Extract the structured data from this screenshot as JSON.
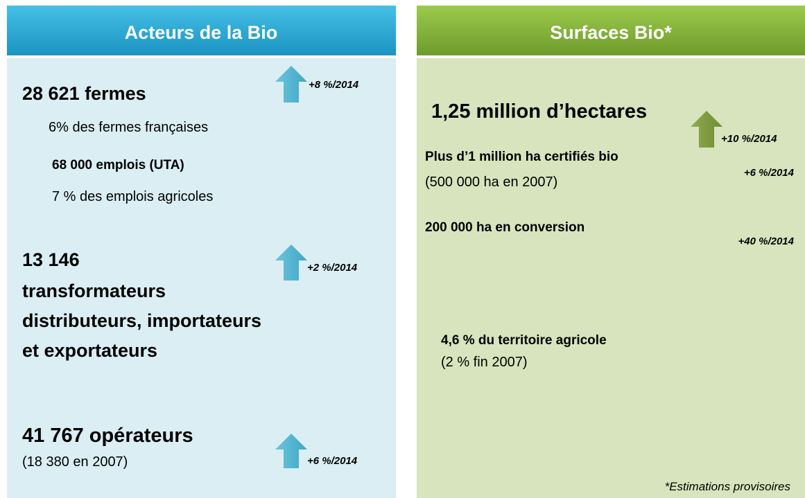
{
  "left": {
    "title": "Acteurs de la Bio",
    "farms": {
      "count": "28 621 fermes",
      "growth": "+8 %/2014",
      "share": "6% des fermes françaises"
    },
    "jobs": {
      "count": "68 000 emplois (UTA)",
      "share": "7 % des emplois agricoles"
    },
    "processors": {
      "lines": [
        "13 146",
        "transformateurs",
        "distributeurs, importateurs",
        "et exportateurs"
      ],
      "growth": "+2 %/2014"
    },
    "operators": {
      "count": "41 767 opérateurs",
      "previous": "(18 380 en 2007)",
      "growth": "+6 %/2014"
    }
  },
  "right": {
    "title": "Surfaces Bio*",
    "total": {
      "count": "1,25 million d’hectares",
      "growth": "+10 %/2014"
    },
    "certified": {
      "label": "Plus d’1 million ha certifiés bio",
      "previous": "(500 000 ha en 2007)",
      "growth": "+6 %/2014"
    },
    "conversion": {
      "label": "200 000 ha en conversion",
      "growth": "+40 %/2014"
    },
    "territory": {
      "label": "4,6 % du territoire agricole",
      "previous": "(2 % fin 2007)"
    },
    "note": "*Estimations provisoires"
  }
}
